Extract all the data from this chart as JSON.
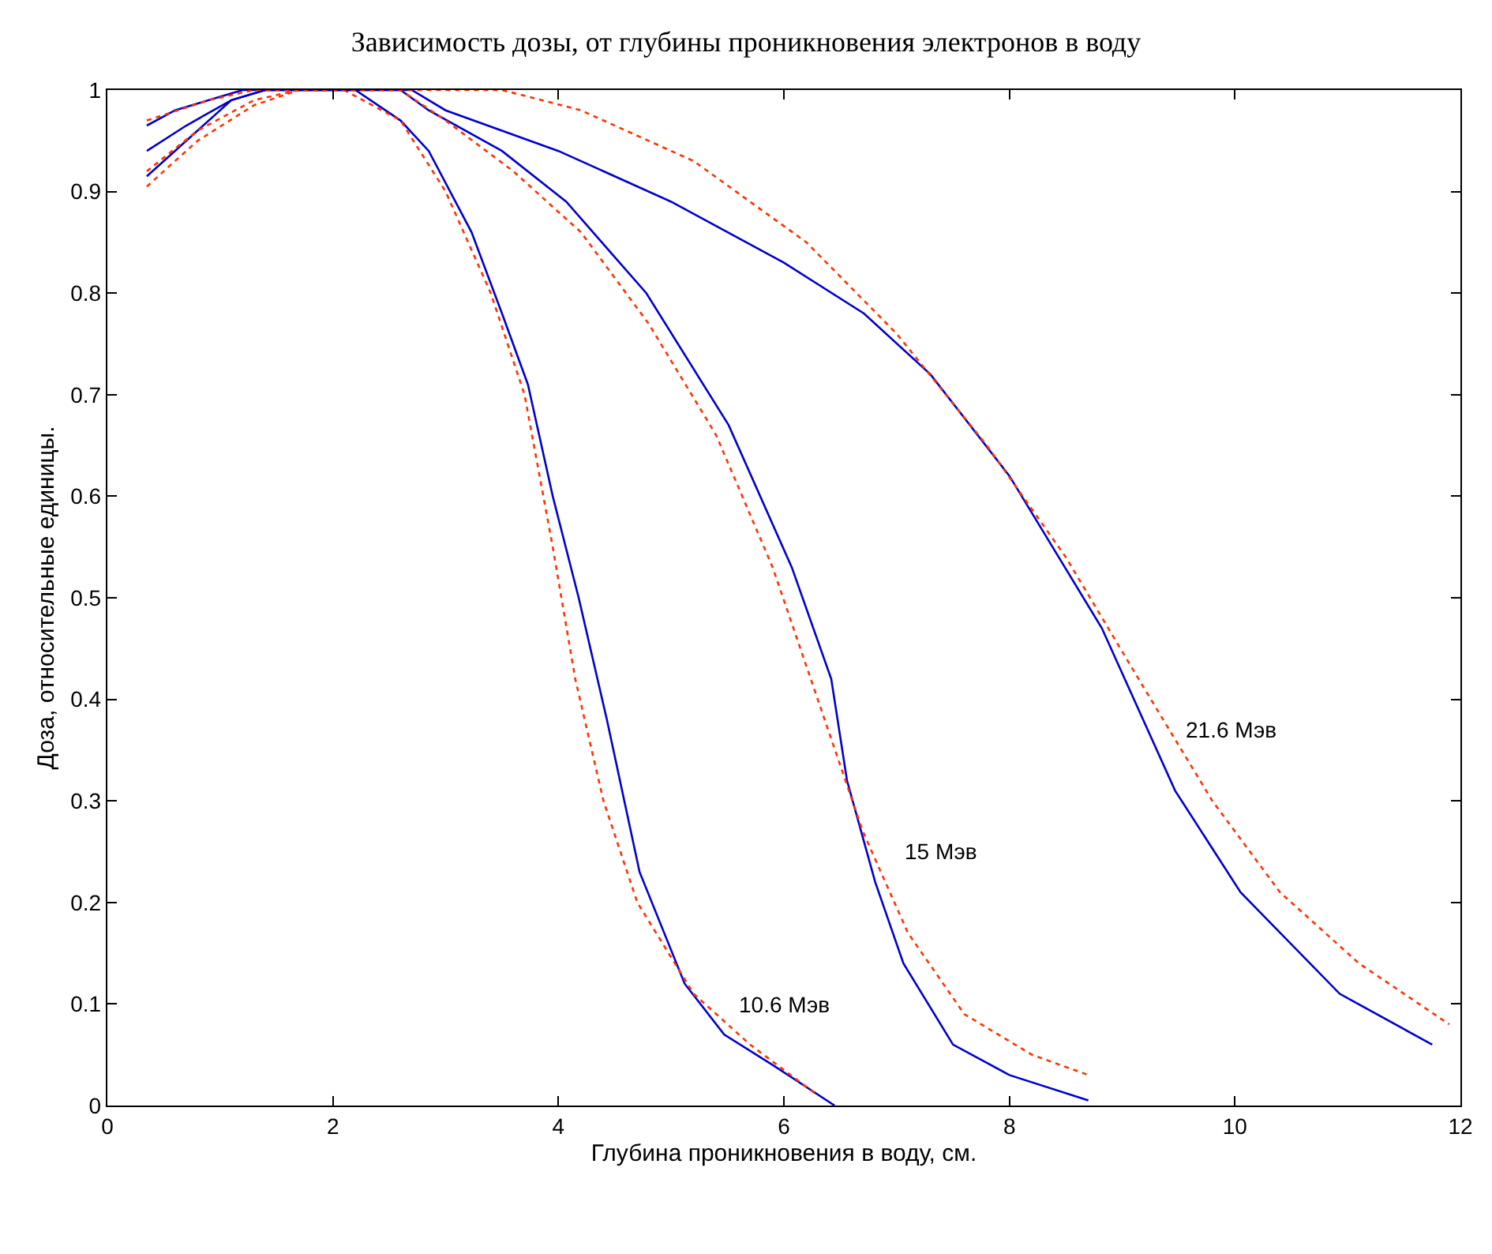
{
  "chart_data": {
    "type": "line",
    "title": "Зависимость дозы, от глубины проникновения электронов в воду",
    "xlabel": "Глубина проникновения в воду, см.",
    "ylabel": "Доза, относительные единицы.",
    "xlim": [
      0,
      12
    ],
    "xticks": [
      0,
      2,
      4,
      6,
      8,
      10,
      12
    ],
    "ylim": [
      0,
      1
    ],
    "yticks": [
      0,
      0.1,
      0.2,
      0.3,
      0.4,
      0.5,
      0.6,
      0.7,
      0.8,
      0.9,
      1
    ],
    "marker": "none",
    "series": [
      {
        "name": "10.6 Мэв",
        "color": "#0000cc",
        "line_style": "solid",
        "x": [
          0.35,
          0.7,
          1.1,
          1.4,
          2.2,
          2.6,
          2.85,
          3.23,
          3.5,
          3.73,
          3.95,
          4.18,
          4.43,
          4.72,
          5.12,
          5.47,
          5.9,
          6.45
        ],
        "values": [
          0.915,
          0.95,
          0.99,
          1.0,
          1.0,
          0.97,
          0.94,
          0.86,
          0.78,
          0.71,
          0.6,
          0.5,
          0.38,
          0.23,
          0.12,
          0.07,
          0.04,
          0.0
        ]
      },
      {
        "color": "#ff3300",
        "line_style": "dotted",
        "x": [
          0.35,
          0.8,
          1.3,
          1.7,
          2.1,
          2.6,
          3.0,
          3.4,
          3.7,
          3.95,
          4.15,
          4.4,
          4.7,
          5.2,
          5.7,
          6.3
        ],
        "values": [
          0.905,
          0.95,
          0.985,
          1.0,
          1.0,
          0.97,
          0.9,
          0.8,
          0.7,
          0.55,
          0.42,
          0.3,
          0.2,
          0.11,
          0.06,
          0.01
        ]
      },
      {
        "name": "15 Мэв",
        "color": "#0000cc",
        "line_style": "solid",
        "x": [
          0.35,
          0.7,
          1.1,
          1.4,
          2.6,
          2.85,
          3.5,
          4.07,
          4.78,
          5.51,
          6.07,
          6.42,
          6.56,
          6.81,
          7.06,
          7.5,
          8.0,
          8.7
        ],
        "values": [
          0.94,
          0.965,
          0.99,
          1.0,
          1.0,
          0.98,
          0.94,
          0.89,
          0.8,
          0.67,
          0.53,
          0.42,
          0.32,
          0.22,
          0.14,
          0.06,
          0.03,
          0.005
        ]
      },
      {
        "color": "#ff3300",
        "line_style": "dotted",
        "x": [
          0.35,
          0.8,
          1.3,
          1.7,
          2.6,
          3.0,
          3.6,
          4.2,
          4.8,
          5.4,
          5.9,
          6.3,
          6.7,
          7.1,
          7.6,
          8.2,
          8.7
        ],
        "values": [
          0.92,
          0.96,
          0.99,
          1.0,
          1.0,
          0.97,
          0.92,
          0.86,
          0.77,
          0.66,
          0.53,
          0.4,
          0.27,
          0.17,
          0.09,
          0.05,
          0.03
        ]
      },
      {
        "name": "21.6 Мэв",
        "color": "#0000cc",
        "line_style": "solid",
        "x": [
          0.35,
          0.6,
          0.9,
          1.2,
          2.7,
          3.0,
          4.0,
          5.0,
          6.0,
          6.71,
          7.3,
          8.0,
          8.82,
          9.47,
          10.05,
          10.93,
          11.75
        ],
        "values": [
          0.965,
          0.98,
          0.99,
          1.0,
          1.0,
          0.98,
          0.94,
          0.89,
          0.83,
          0.78,
          0.72,
          0.62,
          0.47,
          0.31,
          0.21,
          0.11,
          0.06
        ]
      },
      {
        "color": "#ff3300",
        "line_style": "dotted",
        "x": [
          0.35,
          0.9,
          1.3,
          3.5,
          4.2,
          5.2,
          6.2,
          7.0,
          7.8,
          8.5,
          9.2,
          9.8,
          10.4,
          11.1,
          11.9
        ],
        "values": [
          0.97,
          0.99,
          1.0,
          1.0,
          0.98,
          0.93,
          0.85,
          0.76,
          0.65,
          0.54,
          0.41,
          0.3,
          0.21,
          0.14,
          0.08
        ]
      }
    ]
  }
}
